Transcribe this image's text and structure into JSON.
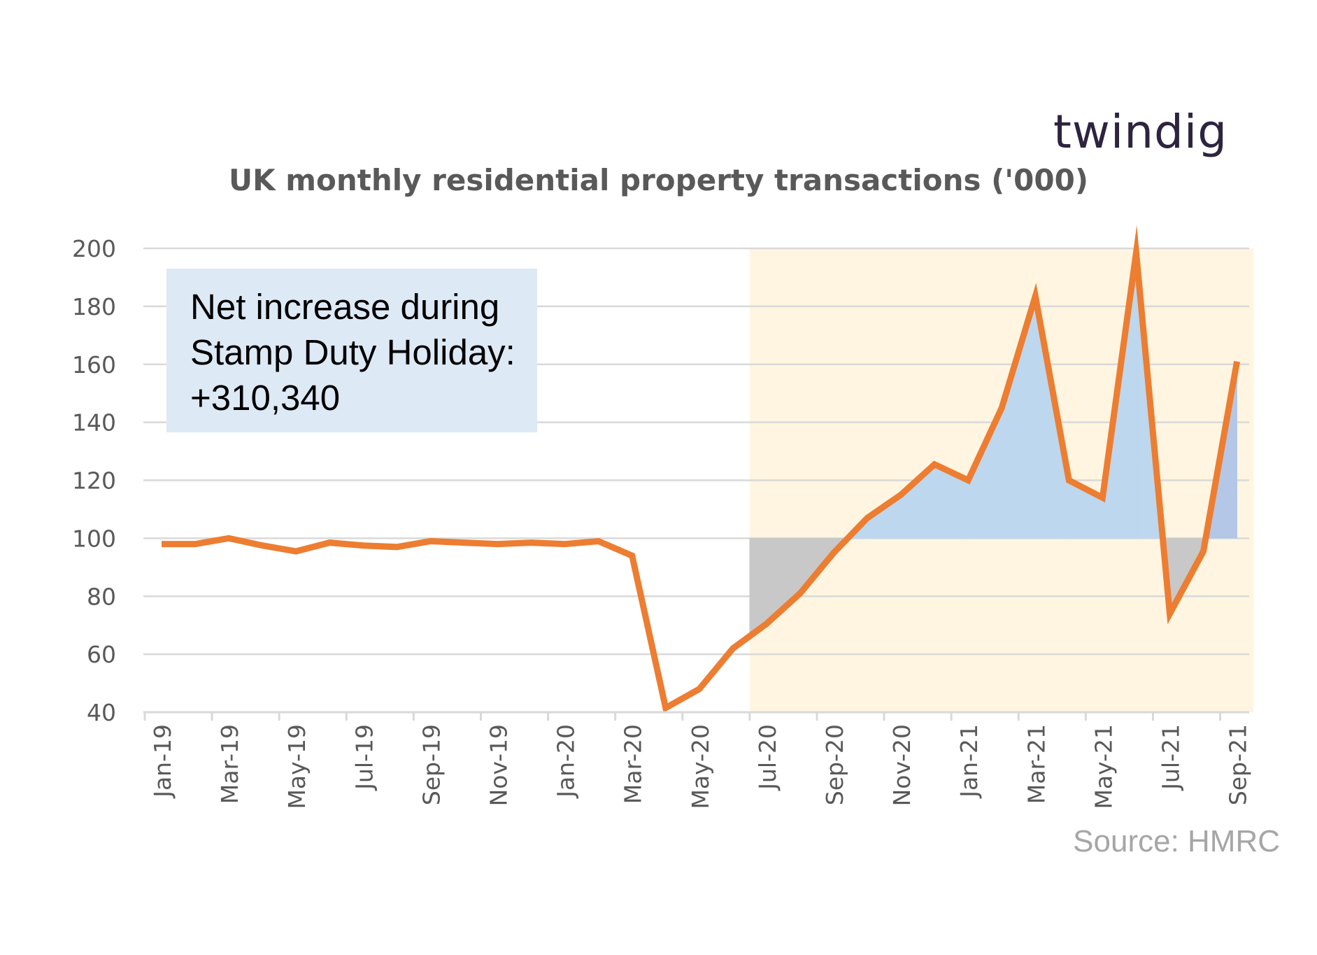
{
  "logo": "twindig",
  "title": "UK monthly residential property transactions ('000)",
  "annotation": {
    "line1": "Net increase during",
    "line2": "Stamp Duty Holiday:",
    "line3": "+310,340"
  },
  "source": "Source: HMRC",
  "colors": {
    "line": "#ed7d31",
    "holiday_shade": "#fff5e1",
    "gain_fill": "#bdd7ee",
    "loss_fill": "#c8c8c8",
    "grid": "#d9d9d9"
  },
  "chart_data": {
    "type": "line",
    "title": "UK monthly residential property transactions ('000)",
    "xlabel": "",
    "ylabel": "",
    "ylim": [
      40,
      200
    ],
    "yticks": [
      40,
      60,
      80,
      100,
      120,
      140,
      160,
      180,
      200
    ],
    "baseline": 100,
    "categories": [
      "Jan-19",
      "Feb-19",
      "Mar-19",
      "Apr-19",
      "May-19",
      "Jun-19",
      "Jul-19",
      "Aug-19",
      "Sep-19",
      "Oct-19",
      "Nov-19",
      "Dec-19",
      "Jan-20",
      "Feb-20",
      "Mar-20",
      "Apr-20",
      "May-20",
      "Jun-20",
      "Jul-20",
      "Aug-20",
      "Sep-20",
      "Oct-20",
      "Nov-20",
      "Dec-20",
      "Jan-21",
      "Feb-21",
      "Mar-21",
      "Apr-21",
      "May-21",
      "Jun-21",
      "Jul-21",
      "Aug-21",
      "Sep-21"
    ],
    "xtick_labels": [
      "Jan-19",
      "Mar-19",
      "May-19",
      "Jul-19",
      "Sep-19",
      "Nov-19",
      "Jan-20",
      "Mar-20",
      "May-20",
      "Jul-20",
      "Sep-20",
      "Nov-20",
      "Jan-21",
      "Mar-21",
      "May-21",
      "Jul-21",
      "Sep-21"
    ],
    "series": [
      {
        "name": "Transactions ('000)",
        "values": [
          98,
          98,
          100,
          97.5,
          95.5,
          98.5,
          97.5,
          97,
          99,
          98.5,
          98,
          98.5,
          98,
          99,
          94,
          41.5,
          48,
          62,
          70.5,
          81,
          95,
          107,
          115,
          125.5,
          120,
          145,
          183.5,
          120,
          114,
          198.5,
          74,
          95.5,
          161
        ]
      }
    ],
    "shaded_period": {
      "label": "Stamp Duty Holiday",
      "start": "Jul-20",
      "end": "Sep-21"
    }
  }
}
